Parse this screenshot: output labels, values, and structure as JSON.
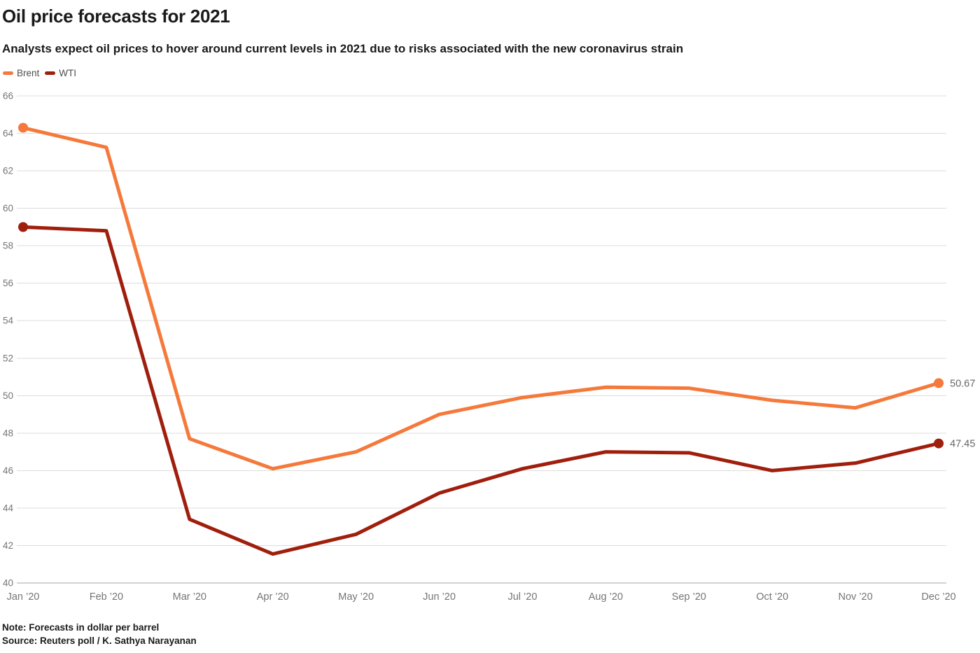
{
  "header": {
    "title": "Oil price forecasts for 2021",
    "subtitle": "Analysts expect oil prices to hover around current levels in 2021 due to risks associated with the new coronavirus strain"
  },
  "legend": {
    "items": [
      {
        "label": "Brent",
        "color": "#F5793B"
      },
      {
        "label": "WTI",
        "color": "#A01E0C"
      }
    ]
  },
  "chart_data": {
    "type": "line",
    "title": "Oil price forecasts for 2021",
    "subtitle": "Analysts expect oil prices to hover around current levels in 2021 due to risks associated with the new coronavirus strain",
    "categories": [
      "Jan ’20",
      "Feb ’20",
      "Mar ’20",
      "Apr ’20",
      "May ’20",
      "Jun ’20",
      "Jul ’20",
      "Aug ’20",
      "Sep ’20",
      "Oct ’20",
      "Nov ’20",
      "Dec ’20"
    ],
    "series": [
      {
        "name": "Brent",
        "color": "#F5793B",
        "values": [
          64.3,
          63.25,
          47.7,
          46.1,
          47.0,
          49.0,
          49.9,
          50.45,
          50.4,
          49.75,
          49.35,
          50.67
        ],
        "end_label": "50.67"
      },
      {
        "name": "WTI",
        "color": "#A01E0C",
        "values": [
          59.0,
          58.8,
          43.4,
          41.55,
          42.6,
          44.8,
          46.1,
          47.0,
          46.95,
          46.0,
          46.4,
          47.45
        ],
        "end_label": "47.45"
      }
    ],
    "xlabel": "",
    "ylabel": "",
    "ylim": [
      40,
      66
    ],
    "ytick_step": 2,
    "grid": true,
    "legend_position": "top-left",
    "colors": {
      "grid_line": "#dcdcdc",
      "axis_line": "#a6a6a6",
      "tick_label": "#757575",
      "end_label": "#666666"
    }
  },
  "footer": {
    "note": "Note: Forecasts in dollar per barrel",
    "source": "Source: Reuters poll / K. Sathya Narayanan"
  }
}
